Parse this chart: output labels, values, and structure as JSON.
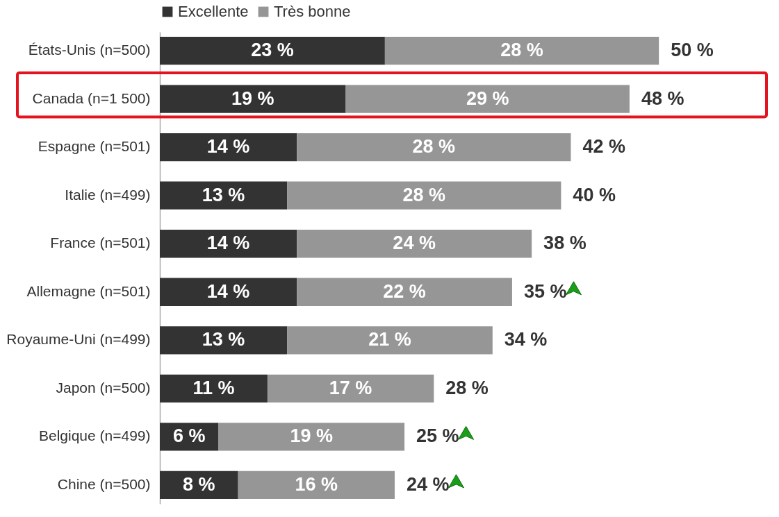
{
  "chart_data": {
    "type": "bar",
    "orientation": "horizontal",
    "stacked": true,
    "legend": "top",
    "categories": [
      "États-Unis (n=500)",
      "Canada (n=1 500)",
      "Espagne (n=501)",
      "Italie (n=499)",
      "France (n=501)",
      "Allemagne (n=501)",
      "Royaume-Uni (n=499)",
      "Japon (n=500)",
      "Belgique (n=499)",
      "Chine (n=500)"
    ],
    "series": [
      {
        "name": "Excellente",
        "color": "#333333",
        "values": [
          23,
          19,
          14,
          13,
          14,
          14,
          13,
          11,
          6,
          8
        ],
        "value_labels": [
          "23 %",
          "19 %",
          "14 %",
          "13 %",
          "14 %",
          "14 %",
          "13 %",
          "11 %",
          "6 %",
          "8 %"
        ]
      },
      {
        "name": "Très bonne",
        "color": "#969696",
        "values": [
          28,
          29,
          28,
          28,
          24,
          22,
          21,
          17,
          19,
          16
        ],
        "value_labels": [
          "28 %",
          "29 %",
          "28 %",
          "28 %",
          "24 %",
          "22 %",
          "21 %",
          "17 %",
          "19 %",
          "16 %"
        ]
      }
    ],
    "totals": [
      "50 %",
      "48 %",
      "42 %",
      "40 %",
      "38 %",
      "35 %",
      "34 %",
      "28 %",
      "25 %",
      "24 %"
    ]
  }
}
